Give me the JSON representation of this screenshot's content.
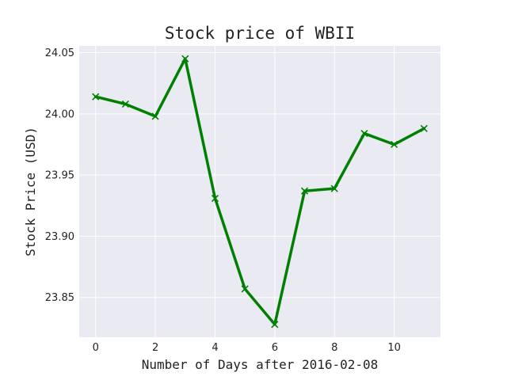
{
  "chart_data": {
    "type": "line",
    "title": "Stock price of WBII",
    "xlabel": "Number of Days after 2016-02-08",
    "ylabel": "Stock Price (USD)",
    "x": [
      0,
      1,
      2,
      3,
      4,
      5,
      6,
      7,
      8,
      9,
      10,
      11
    ],
    "series": [
      {
        "values": [
          24.014,
          24.008,
          23.998,
          24.045,
          23.931,
          23.857,
          23.828,
          23.937,
          23.939,
          23.984,
          23.975,
          23.988
        ]
      }
    ],
    "xlim": [
      -0.55,
      11.55
    ],
    "ylim": [
      23.8175,
      24.0555
    ],
    "xticks": [
      0,
      2,
      4,
      6,
      8,
      10
    ],
    "xtick_labels": [
      "0",
      "2",
      "4",
      "6",
      "8",
      "10"
    ],
    "yticks": [
      23.85,
      23.9,
      23.95,
      24.0,
      24.05
    ],
    "ytick_labels": [
      "23.85",
      "23.90",
      "23.95",
      "24.00",
      "24.05"
    ],
    "grid": true,
    "line_color": "#008000",
    "marker": "x",
    "plot_background": "#eaeaf2",
    "grid_color": "#ffffff"
  }
}
